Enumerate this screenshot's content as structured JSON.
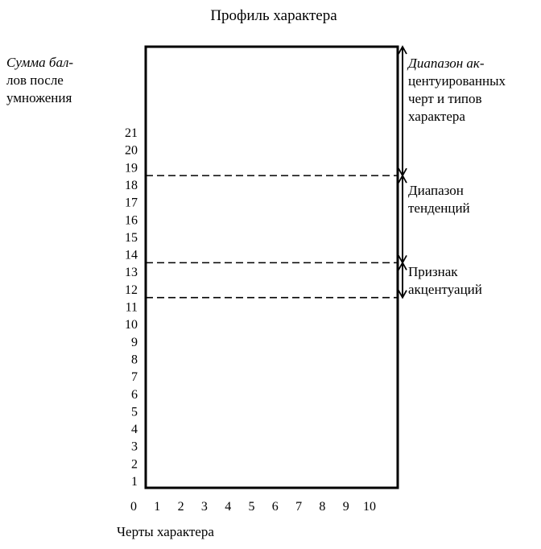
{
  "title": "Профиль характера",
  "y_axis_label": [
    "Сумма бал-",
    "лов после",
    "умножения"
  ],
  "x_axis_label": "Черты характера",
  "y_ticks": [
    "1",
    "2",
    "3",
    "4",
    "5",
    "6",
    "7",
    "8",
    "9",
    "10",
    "11",
    "12",
    "13",
    "14",
    "15",
    "16",
    "17",
    "18",
    "19",
    "20",
    "21"
  ],
  "x_ticks": [
    "0",
    "1",
    "2",
    "3",
    "4",
    "5",
    "6",
    "7",
    "8",
    "9",
    "10"
  ],
  "thresholds": [
    11.5,
    13.5,
    18.5
  ],
  "ranges": [
    {
      "name": "accentuated-range",
      "from": 18.5,
      "to": 25,
      "label": [
        "Диапазон ак-",
        "центуированных",
        "черт и типов",
        "характера"
      ]
    },
    {
      "name": "tendency-range",
      "from": 13.5,
      "to": 18.5,
      "label": [
        "Диапазон",
        "тенденций"
      ]
    },
    {
      "name": "accentuation-sign",
      "from": 11.5,
      "to": 13.5,
      "label": [
        "Признак",
        "акцентуаций"
      ]
    }
  ]
}
